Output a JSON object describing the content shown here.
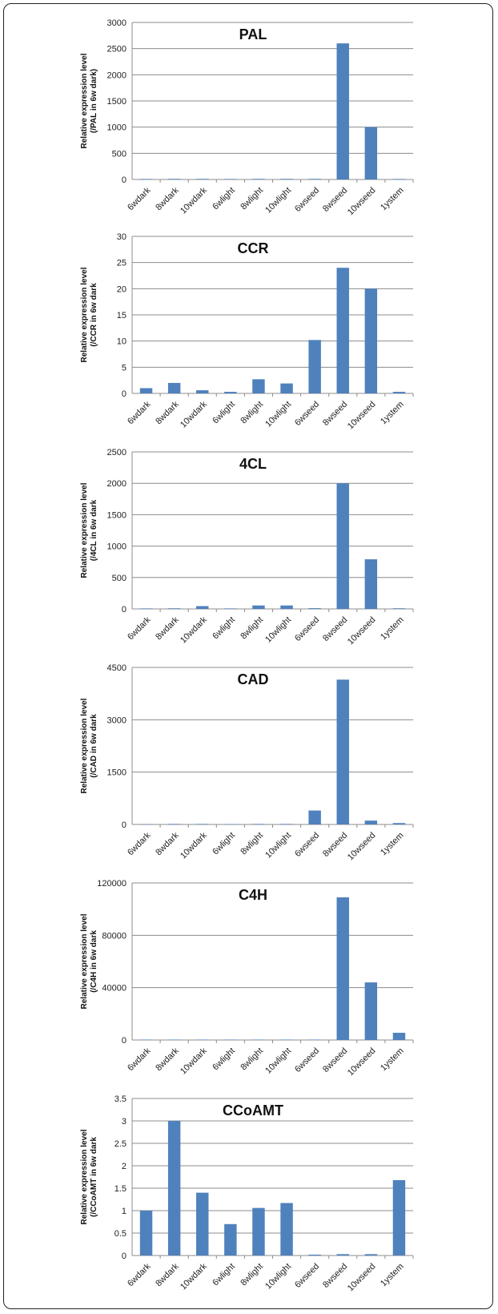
{
  "chart_data": [
    {
      "type": "bar",
      "title": "PAL",
      "ylabel_lines": [
        "Relative expression level",
        "(/PAL in 6w dark)"
      ],
      "categories": [
        "6wdark",
        "8wdark",
        "10wdark",
        "6wlight",
        "8wlight",
        "10wlight",
        "6wseed",
        "8wseed",
        "10wseed",
        "1ystem"
      ],
      "values": [
        10,
        12,
        12,
        10,
        12,
        12,
        12,
        2600,
        1000,
        10
      ],
      "ylim": [
        0,
        3000
      ],
      "yticks": [
        0,
        500,
        1000,
        1500,
        2000,
        2500,
        3000
      ],
      "color": "#4f81bd",
      "grid": true,
      "legend": "none"
    },
    {
      "type": "bar",
      "title": "CCR",
      "ylabel_lines": [
        "Relative expression level",
        "(/CCR in 6w dark"
      ],
      "categories": [
        "6wdark",
        "8wdark",
        "10wdark",
        "6wlight",
        "8wlight",
        "10wlight",
        "6wseed",
        "8wseed",
        "10wseed",
        "1ystem"
      ],
      "values": [
        1,
        2,
        0.6,
        0.3,
        2.7,
        1.9,
        10.2,
        24,
        20,
        0.3
      ],
      "ylim": [
        0,
        30
      ],
      "yticks": [
        0,
        5,
        10,
        15,
        20,
        25,
        30
      ],
      "color": "#4f81bd",
      "grid": true,
      "legend": "none"
    },
    {
      "type": "bar",
      "title": "4CL",
      "ylabel_lines": [
        "Relative expression level",
        "(/4CL in 6w dark"
      ],
      "categories": [
        "6wdark",
        "8wdark",
        "10wdark",
        "6wlight",
        "8wlight",
        "10wlight",
        "6wseed",
        "8wseed",
        "10wseed",
        "1ystem"
      ],
      "values": [
        8,
        10,
        45,
        8,
        55,
        55,
        12,
        2000,
        790,
        10
      ],
      "ylim": [
        0,
        2500
      ],
      "yticks": [
        0,
        500,
        1000,
        1500,
        2000,
        2500
      ],
      "color": "#4f81bd",
      "grid": true,
      "legend": "none"
    },
    {
      "type": "bar",
      "title": "CAD",
      "ylabel_lines": [
        "Relative expression level",
        "(/CAD in 6w dark"
      ],
      "categories": [
        "6wdark",
        "8wdark",
        "10wdark",
        "6wlight",
        "8wlight",
        "10wlight",
        "6wseed",
        "8wseed",
        "10wseed",
        "1ystem"
      ],
      "values": [
        10,
        15,
        15,
        10,
        15,
        15,
        400,
        4150,
        110,
        40
      ],
      "ylim": [
        0,
        4500
      ],
      "yticks": [
        0,
        1500,
        3000,
        4500
      ],
      "color": "#4f81bd",
      "grid": true,
      "legend": "none"
    },
    {
      "type": "bar",
      "title": "C4H",
      "ylabel_lines": [
        "Relative expression level",
        "(/C4H in 6w dark"
      ],
      "categories": [
        "6wdark",
        "8wdark",
        "10wdark",
        "6wlight",
        "8wlight",
        "10wlight",
        "6wseed",
        "8wseed",
        "10wseed",
        "1ystem"
      ],
      "values": [
        300,
        300,
        300,
        300,
        300,
        300,
        300,
        109000,
        44000,
        5500
      ],
      "ylim": [
        0,
        120000
      ],
      "yticks": [
        0,
        40000,
        80000,
        120000
      ],
      "color": "#4f81bd",
      "grid": true,
      "legend": "none"
    },
    {
      "type": "bar",
      "title": "CCoAMT",
      "ylabel_lines": [
        "Relative expression level",
        "(/CCoAMT in 6w dark"
      ],
      "categories": [
        "6wdark",
        "8wdark",
        "10wdark",
        "6wlight",
        "8wlight",
        "10wlight",
        "6wseed",
        "8wseed",
        "10wseed",
        "1ystem"
      ],
      "values": [
        1,
        3,
        1.4,
        0.7,
        1.06,
        1.17,
        0.02,
        0.03,
        0.03,
        1.68
      ],
      "ylim": [
        0,
        3.5
      ],
      "yticks": [
        0,
        0.5,
        1,
        1.5,
        2,
        2.5,
        3,
        3.5
      ],
      "color": "#4f81bd",
      "grid": true,
      "legend": "none"
    }
  ]
}
